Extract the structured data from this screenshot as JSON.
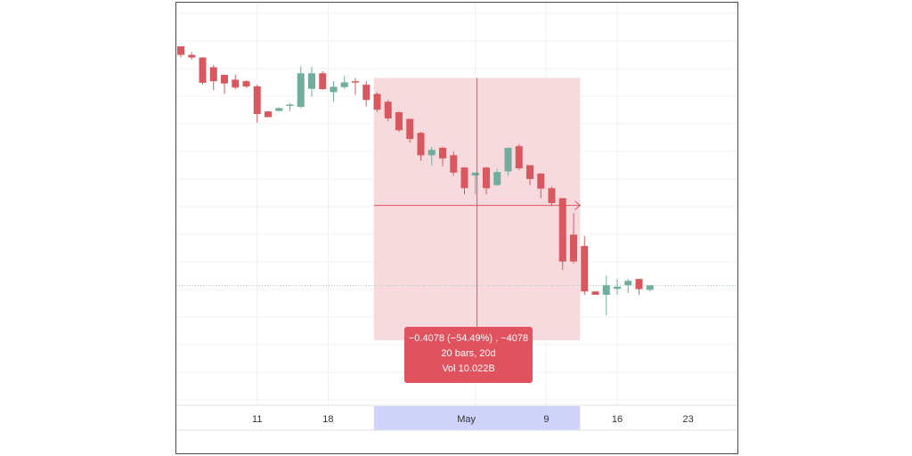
{
  "chart_data": {
    "type": "candlestick",
    "title": "",
    "xlabel": "",
    "ylabel": "",
    "x_ticks": [
      "11",
      "18",
      "May",
      "9",
      "16",
      "23"
    ],
    "colors": {
      "up": "#6fae9d",
      "down": "#d9585f",
      "measure_fill": "#f6dadd",
      "measure_line": "#e0525e",
      "axis_highlight": "#d0d4fb",
      "grid": "#f0f0f0",
      "last_price_line": "#9fc9bb"
    },
    "candles": [
      {
        "open": 1.0,
        "high": 1.0,
        "low": 0.9553,
        "close": 0.9655
      },
      {
        "open": 0.9655,
        "high": 0.9757,
        "low": 0.9463,
        "close": 0.955
      },
      {
        "open": 0.955,
        "high": 0.9563,
        "low": 0.8463,
        "close": 0.8531
      },
      {
        "open": 0.9157,
        "high": 0.9247,
        "low": 0.8237,
        "close": 0.8595
      },
      {
        "open": 0.885,
        "high": 0.887,
        "low": 0.8089,
        "close": 0.8506
      },
      {
        "open": 0.8659,
        "high": 0.8863,
        "low": 0.8275,
        "close": 0.834
      },
      {
        "open": 0.8595,
        "high": 0.8634,
        "low": 0.8333,
        "close": 0.8384
      },
      {
        "open": 0.8391,
        "high": 0.845,
        "low": 0.693,
        "close": 0.7278
      },
      {
        "open": 0.738,
        "high": 0.7393,
        "low": 0.715,
        "close": 0.715
      },
      {
        "open": 0.7399,
        "high": 0.754,
        "low": 0.738,
        "close": 0.7514
      },
      {
        "open": 0.7655,
        "high": 0.7719,
        "low": 0.7386,
        "close": 0.7655
      },
      {
        "open": 0.7565,
        "high": 0.9195,
        "low": 0.7514,
        "close": 0.8914
      },
      {
        "open": 0.8289,
        "high": 0.9169,
        "low": 0.7968,
        "close": 0.8914
      },
      {
        "open": 0.8914,
        "high": 0.9003,
        "low": 0.825,
        "close": 0.8276
      },
      {
        "open": 0.8155,
        "high": 0.8602,
        "low": 0.777,
        "close": 0.8372
      },
      {
        "open": 0.8359,
        "high": 0.8806,
        "low": 0.8289,
        "close": 0.855
      },
      {
        "open": 0.8595,
        "high": 0.8723,
        "low": 0.8046,
        "close": 0.8544
      },
      {
        "open": 0.8455,
        "high": 0.8595,
        "low": 0.7584,
        "close": 0.784
      },
      {
        "open": 0.8085,
        "high": 0.8148,
        "low": 0.7355,
        "close": 0.745
      },
      {
        "open": 0.777,
        "high": 0.7847,
        "low": 0.6981,
        "close": 0.7099
      },
      {
        "open": 0.7348,
        "high": 0.7386,
        "low": 0.656,
        "close": 0.6623
      },
      {
        "open": 0.708,
        "high": 0.7086,
        "low": 0.612,
        "close": 0.6272
      },
      {
        "open": 0.6515,
        "high": 0.656,
        "low": 0.539,
        "close": 0.5617
      },
      {
        "open": 0.5617,
        "high": 0.5949,
        "low": 0.5198,
        "close": 0.5834
      },
      {
        "open": 0.5917,
        "high": 0.5968,
        "low": 0.5172,
        "close": 0.5492
      },
      {
        "open": 0.5617,
        "high": 0.577,
        "low": 0.4789,
        "close": 0.4917
      },
      {
        "open": 0.5121,
        "high": 0.5146,
        "low": 0.4041,
        "close": 0.4291
      },
      {
        "open": 0.4802,
        "high": 0.4853,
        "low": 0.4047,
        "close": 0.4917
      },
      {
        "open": 0.5121,
        "high": 0.5146,
        "low": 0.4041,
        "close": 0.4291
      },
      {
        "open": 0.4419,
        "high": 0.5057,
        "low": 0.438,
        "close": 0.4943
      },
      {
        "open": 0.4968,
        "high": 0.5829,
        "low": 0.4789,
        "close": 0.5917
      },
      {
        "open": 0.5981,
        "high": 0.6064,
        "low": 0.5025,
        "close": 0.5089
      },
      {
        "open": 0.5217,
        "high": 0.5217,
        "low": 0.4406,
        "close": 0.4661
      },
      {
        "open": 0.4878,
        "high": 0.4898,
        "low": 0.3888,
        "close": 0.4272
      },
      {
        "open": 0.4291,
        "high": 0.4355,
        "low": 0.3569,
        "close": 0.369
      },
      {
        "open": 0.3888,
        "high": 0.3888,
        "low": 0.1001,
        "close": 0.134
      },
      {
        "open": 0.242,
        "high": 0.3282,
        "low": 0.1264,
        "close": 0.134
      },
      {
        "open": 0.1965,
        "high": 0.2369,
        "low": 0.0,
        "close": 0.0134
      },
      {
        "open": 0.0134,
        "high": 0.0134,
        "low": 0.0,
        "close": 0.0
      },
      {
        "open": 0.0,
        "high": 0.0772,
        "low": -0.083,
        "close": 0.0383
      },
      {
        "open": 0.0242,
        "high": 0.0638,
        "low": 0.0006,
        "close": 0.0325
      },
      {
        "open": 0.0383,
        "high": 0.0638,
        "low": 0.007,
        "close": 0.0562
      },
      {
        "open": 0.0638,
        "high": 0.0638,
        "low": 0.0,
        "close": 0.023
      },
      {
        "open": 0.0198,
        "high": 0.037,
        "low": 0.0134,
        "close": 0.0383
      }
    ],
    "measurement": {
      "change_text": "−0.4078 (−54.49%) , −4078",
      "bars_text": "20 bars, 20d",
      "volume_text": "Vol 10.022B"
    }
  }
}
